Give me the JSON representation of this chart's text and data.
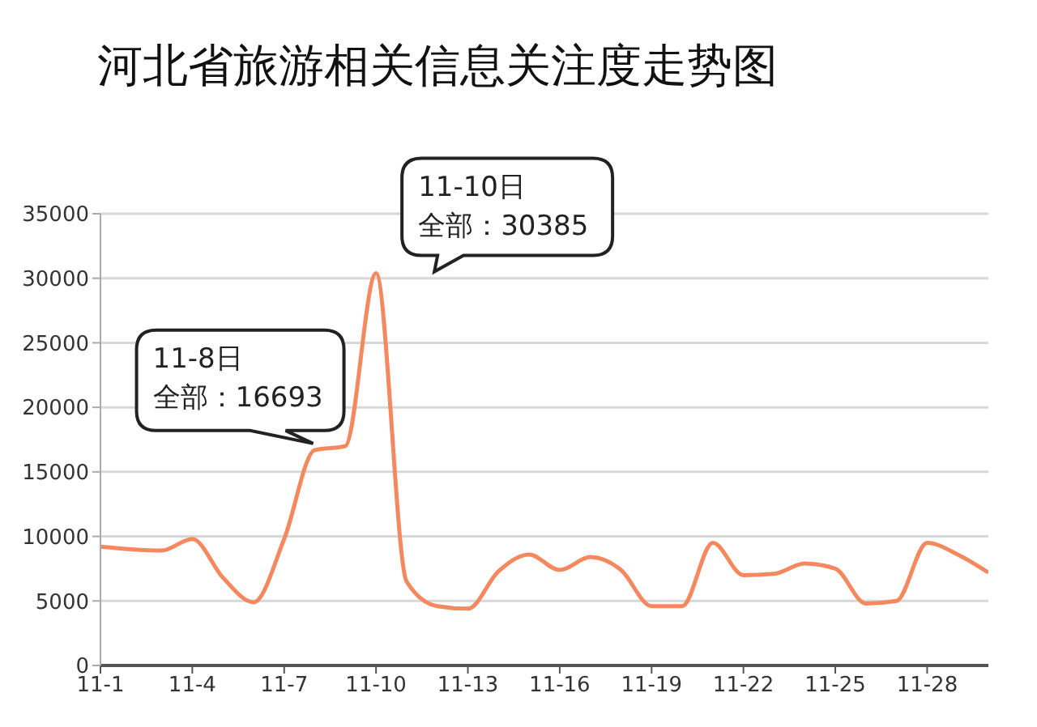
{
  "chart_data": {
    "type": "line",
    "title": "河北省旅游相关信息关注度走势图",
    "x": [
      "--11-01",
      "--11-02",
      "--11-03",
      "--11-04",
      "--11-05",
      "--11-06",
      "--11-07",
      "--11-08",
      "--11-09",
      "--11-10",
      "--11-11",
      "--11-12",
      "--11-13",
      "--11-14",
      "--11-15",
      "--11-16",
      "--11-17",
      "--11-18",
      "--11-19",
      "--11-20",
      "--11-21",
      "--11-22",
      "--11-23",
      "--11-24",
      "--11-25",
      "--11-26",
      "--11-27",
      "--11-28",
      "--11-29",
      "--11-30"
    ],
    "xlim": [
      "--11-01",
      "--11-30"
    ],
    "xticks": [
      {
        "value": "--11-01",
        "label": "11-1"
      },
      {
        "value": "--11-04",
        "label": "11-4"
      },
      {
        "value": "--11-07",
        "label": "11-7"
      },
      {
        "value": "--11-10",
        "label": "11-10"
      },
      {
        "value": "--11-13",
        "label": "11-13"
      },
      {
        "value": "--11-16",
        "label": "11-16"
      },
      {
        "value": "--11-19",
        "label": "11-19"
      },
      {
        "value": "--11-22",
        "label": "11-22"
      },
      {
        "value": "--11-25",
        "label": "11-25"
      },
      {
        "value": "--11-28",
        "label": "11-28"
      }
    ],
    "series": [
      {
        "color": "#f4895f",
        "values": [
          9200,
          9000,
          8900,
          9800,
          6800,
          4900,
          9800,
          16693,
          17000,
          30385,
          6500,
          4600,
          4400,
          7300,
          8600,
          7400,
          8400,
          7400,
          4600,
          4600,
          9500,
          7000,
          7100,
          7900,
          7500,
          4800,
          5000,
          9500,
          8600,
          7200
        ]
      }
    ],
    "ylim": [
      0,
      35000
    ],
    "yticks": [
      0,
      5000,
      10000,
      15000,
      20000,
      25000,
      30000,
      35000
    ],
    "grid": "y",
    "marker": "none",
    "line_style": "solid",
    "legend": false,
    "annotations": [
      "11-8日",
      {
        "text": "全部：16693",
        "x": "--11-08",
        "y": 16693
      },
      "11-10日",
      {
        "text": "全部：30385",
        "x": "--11-10",
        "y": 30385
      }
    ]
  }
}
